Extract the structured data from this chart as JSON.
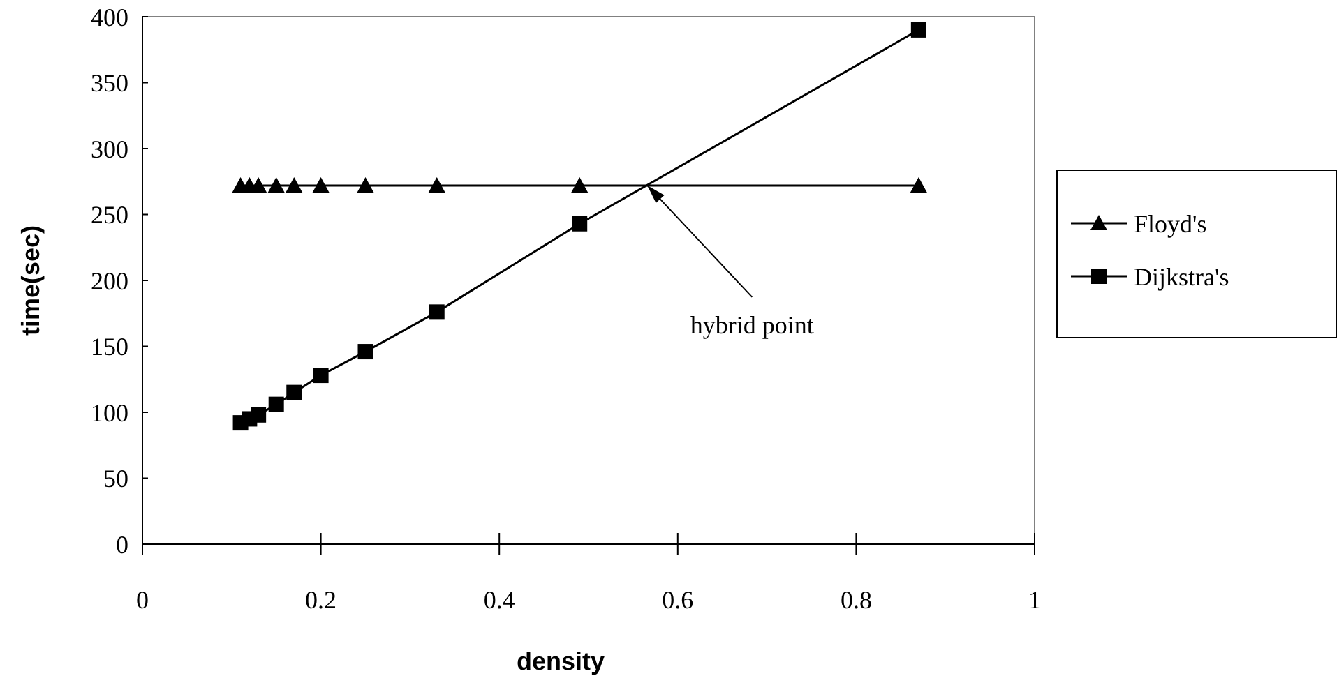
{
  "chart_data": {
    "type": "line",
    "xlabel": "density",
    "ylabel": "time(sec)",
    "xlim": [
      0,
      1
    ],
    "xticks": [
      0,
      0.2,
      0.4,
      0.6,
      0.8,
      1
    ],
    "ylim": [
      0,
      400
    ],
    "yticks": [
      0,
      50,
      100,
      150,
      200,
      250,
      300,
      350,
      400
    ],
    "grid": false,
    "legend": "right",
    "line_style": "solid",
    "series": [
      {
        "name": "Floyd's",
        "color": "#000000",
        "marker": "triangle",
        "x": [
          0.11,
          0.12,
          0.13,
          0.15,
          0.17,
          0.2,
          0.25,
          0.33,
          0.49,
          0.87
        ],
        "values": [
          272,
          272,
          272,
          272,
          272,
          272,
          272,
          272,
          272,
          272
        ]
      },
      {
        "name": "Dijkstra's",
        "color": "#000000",
        "marker": "square",
        "x": [
          0.11,
          0.12,
          0.13,
          0.15,
          0.17,
          0.2,
          0.25,
          0.33,
          0.49,
          0.87
        ],
        "values": [
          92,
          95,
          98,
          106,
          115,
          128,
          146,
          176,
          243,
          390
        ]
      }
    ],
    "annotations": [
      {
        "text": "hybrid point",
        "x": 0.566,
        "y": 272
      }
    ]
  }
}
